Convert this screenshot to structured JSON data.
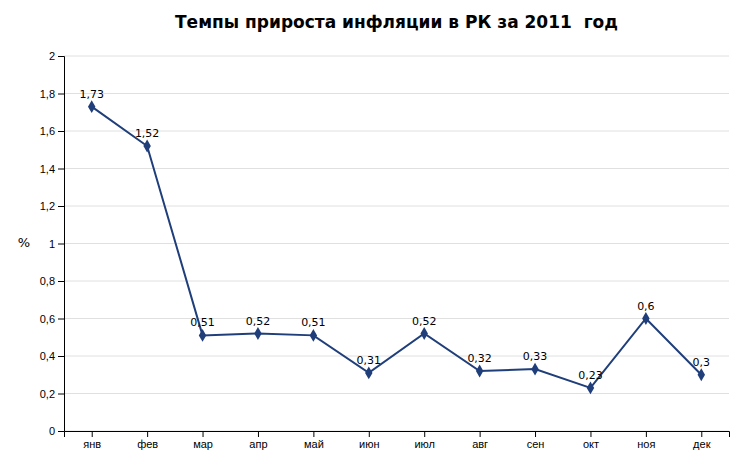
{
  "chart_data": {
    "type": "line",
    "title": "Темпы прироста инфляции в РК за 2011  год",
    "ylabel": "%",
    "categories": [
      "янв",
      "фев",
      "мар",
      "апр",
      "май",
      "июн",
      "июл",
      "авг",
      "сен",
      "окт",
      "ноя",
      "дек"
    ],
    "values": [
      1.73,
      1.52,
      0.51,
      0.52,
      0.51,
      0.31,
      0.52,
      0.32,
      0.33,
      0.23,
      0.6,
      0.3
    ],
    "value_labels": [
      "1,73",
      "1,52",
      "0,51",
      "0,52",
      "0,51",
      "0,31",
      "0,52",
      "0,32",
      "0,33",
      "0,23",
      "0,6",
      "0,3"
    ],
    "color": "#1F3E7A",
    "marker": "diamond",
    "data_labels": true,
    "grid": true,
    "ylim": [
      0,
      2.0
    ],
    "yticks": [
      0,
      {
        "value": 0.2,
        "label": "0,2"
      },
      {
        "value": 0.4,
        "label": "0,4"
      },
      {
        "value": 0.6,
        "label": "0,6"
      },
      {
        "value": 0.8,
        "label": "0,8"
      },
      1,
      {
        "value": 1.2,
        "label": "1,2"
      },
      {
        "value": 1.4,
        "label": "1,4"
      },
      {
        "value": 1.6,
        "label": "1,6"
      },
      {
        "value": 1.8,
        "label": "1,8"
      },
      2
    ]
  }
}
